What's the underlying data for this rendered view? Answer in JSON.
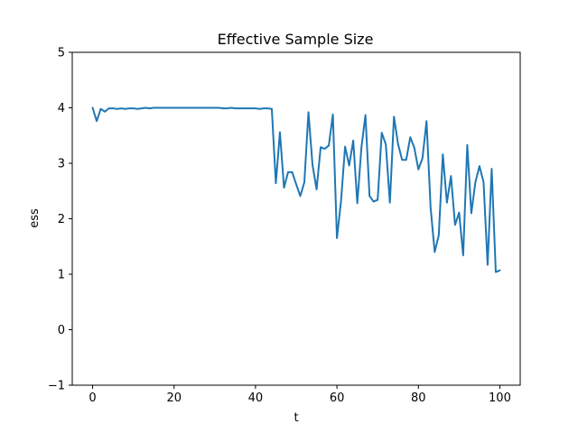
{
  "chart_data": {
    "type": "line",
    "title": "Effective Sample Size",
    "xlabel": "t",
    "ylabel": "ess",
    "xlim": [
      -5,
      105
    ],
    "ylim": [
      -1,
      5
    ],
    "xticks": [
      0,
      20,
      40,
      60,
      80,
      100
    ],
    "yticks": [
      -1,
      0,
      1,
      2,
      3,
      4,
      5
    ],
    "grid": false,
    "series": [
      {
        "color": "#1f77b4",
        "x": [
          0,
          1,
          2,
          3,
          4,
          5,
          6,
          7,
          8,
          9,
          10,
          11,
          12,
          13,
          14,
          15,
          16,
          17,
          18,
          19,
          20,
          21,
          22,
          23,
          24,
          25,
          26,
          27,
          28,
          29,
          30,
          31,
          32,
          33,
          34,
          35,
          36,
          37,
          38,
          39,
          40,
          41,
          42,
          43,
          44,
          45,
          46,
          47,
          48,
          49,
          50,
          51,
          52,
          53,
          54,
          55,
          56,
          57,
          58,
          59,
          60,
          61,
          62,
          63,
          64,
          65,
          66,
          67,
          68,
          69,
          70,
          71,
          72,
          73,
          74,
          75,
          76,
          77,
          78,
          79,
          80,
          81,
          82,
          83,
          84,
          85,
          86,
          87,
          88,
          89,
          90,
          91,
          92,
          93,
          94,
          95,
          96,
          97,
          98,
          99,
          100
        ],
        "y": [
          4.0,
          3.76,
          3.98,
          3.93,
          3.99,
          3.99,
          3.98,
          3.99,
          3.98,
          3.99,
          3.99,
          3.98,
          3.99,
          4.0,
          3.99,
          4.0,
          4.0,
          4.0,
          4.0,
          4.0,
          4.0,
          4.0,
          4.0,
          4.0,
          4.0,
          4.0,
          4.0,
          4.0,
          4.0,
          4.0,
          4.0,
          4.0,
          3.99,
          3.99,
          4.0,
          3.99,
          3.99,
          3.99,
          3.99,
          3.99,
          3.99,
          3.98,
          3.99,
          3.99,
          3.98,
          2.64,
          3.56,
          2.56,
          2.84,
          2.84,
          2.62,
          2.41,
          2.66,
          3.92,
          2.97,
          2.53,
          3.29,
          3.26,
          3.32,
          3.88,
          1.65,
          2.32,
          3.3,
          2.96,
          3.41,
          2.28,
          3.28,
          3.87,
          2.41,
          2.31,
          2.34,
          3.55,
          3.34,
          2.29,
          3.84,
          3.35,
          3.06,
          3.06,
          3.47,
          3.28,
          2.89,
          3.09,
          3.76,
          2.2,
          1.4,
          1.7,
          3.16,
          2.29,
          2.77,
          1.89,
          2.11,
          1.34,
          3.33,
          2.1,
          2.66,
          2.95,
          2.66,
          1.17,
          2.9,
          1.04,
          1.07
        ]
      }
    ]
  }
}
